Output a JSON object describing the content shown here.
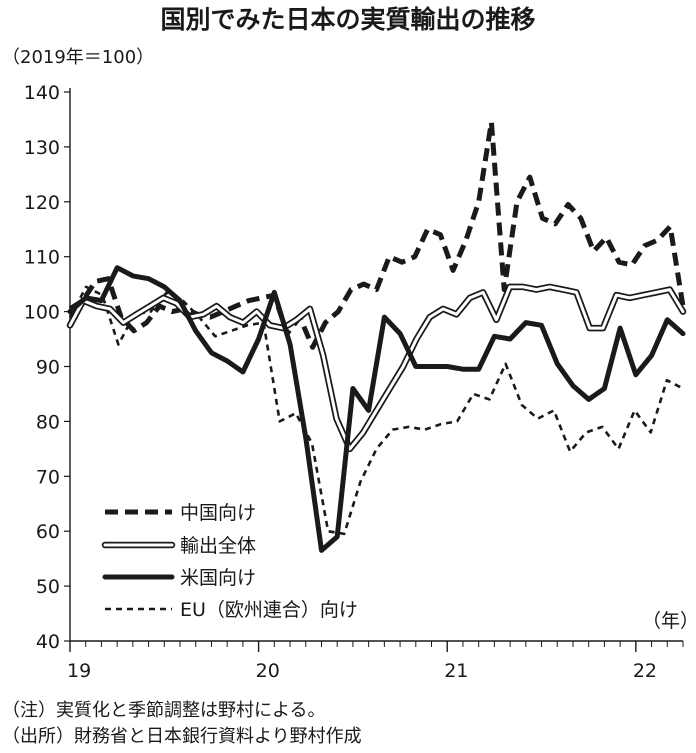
{
  "chart_data": {
    "type": "line",
    "title": "国別でみた日本の実質輸出の推移",
    "unit_label": "（2019年＝100）",
    "xlabel": "（年）",
    "ylim": [
      40,
      140
    ],
    "y_ticks": [
      "40",
      "50",
      "60",
      "70",
      "80",
      "90",
      "100",
      "110",
      "120",
      "130",
      "140"
    ],
    "x_tick_labels": [
      {
        "label": "19",
        "year": 2019
      },
      {
        "label": "20",
        "year": 2020
      },
      {
        "label": "21",
        "year": 2021
      },
      {
        "label": "22",
        "year": 2022
      }
    ],
    "x_range": [
      "2019-01",
      "2022-04"
    ],
    "series": [
      {
        "name": "中国向け",
        "style": "dashed-thick",
        "color": "#1a1a1a",
        "values": [
          100.5,
          102,
          105.5,
          106,
          99,
          96.5,
          98,
          101,
          100,
          100.5,
          99.5,
          99,
          100,
          101,
          102,
          102.5,
          103,
          96,
          99,
          93.5,
          98,
          100,
          104,
          105,
          104,
          110,
          109,
          110,
          115,
          114,
          107.5,
          113,
          120,
          134.5,
          104,
          120,
          124.5,
          117,
          116,
          119.5,
          117,
          111,
          113.5,
          109,
          108.5,
          112,
          113,
          115.5,
          101
        ]
      },
      {
        "name": "輸出全体",
        "style": "double",
        "color": "#1a1a1a",
        "values": [
          97.5,
          102,
          101,
          100.5,
          98,
          99.5,
          101,
          102.5,
          101.5,
          99,
          99.5,
          101,
          99,
          98,
          100,
          97.5,
          97,
          98.5,
          100.5,
          92,
          80.5,
          75,
          78,
          82,
          86,
          90,
          95,
          99,
          100.5,
          99.5,
          102.5,
          103.5,
          98.5,
          104.5,
          104.5,
          104,
          104.5,
          104,
          103.5,
          97,
          97,
          103,
          102.5,
          103,
          103.5,
          104,
          100
        ]
      },
      {
        "name": "米国向け",
        "style": "solid-thick",
        "color": "#1a1a1a",
        "values": [
          100,
          102.5,
          102,
          108,
          106.5,
          106,
          104.5,
          102,
          96.5,
          92.5,
          91,
          89,
          95,
          103.5,
          94,
          77,
          56.5,
          59,
          86,
          82,
          99,
          96,
          90,
          90,
          90,
          89.5,
          89.5,
          95.5,
          95,
          98,
          97.5,
          90.5,
          86.5,
          84,
          86,
          97,
          88.5,
          92,
          98.5,
          96
        ]
      },
      {
        "name": "EU（欧州連合）向け",
        "style": "dotted",
        "color": "#1a1a1a",
        "values": [
          99,
          104.5,
          103,
          94,
          99.5,
          100,
          103.5,
          102,
          99,
          95.5,
          96.5,
          97.5,
          98,
          80,
          81.5,
          76,
          60,
          59.5,
          69,
          75,
          78.5,
          79,
          78.5,
          79.5,
          80,
          85,
          84,
          90.5,
          83,
          80.5,
          82,
          74.5,
          78,
          79,
          75,
          82,
          78,
          87.5,
          86
        ]
      }
    ]
  },
  "notes": {
    "note1": "（注）実質化と季節調整は野村による。",
    "note2": "（出所）財務省と日本銀行資料より野村作成"
  }
}
